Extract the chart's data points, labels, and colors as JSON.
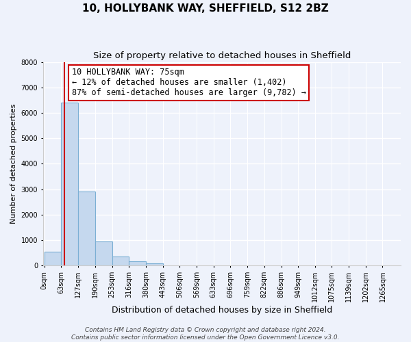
{
  "title": "10, HOLLYBANK WAY, SHEFFIELD, S12 2BZ",
  "subtitle": "Size of property relative to detached houses in Sheffield",
  "xlabel": "Distribution of detached houses by size in Sheffield",
  "ylabel": "Number of detached properties",
  "bar_labels": [
    "0sqm",
    "63sqm",
    "127sqm",
    "190sqm",
    "253sqm",
    "316sqm",
    "380sqm",
    "443sqm",
    "506sqm",
    "569sqm",
    "633sqm",
    "696sqm",
    "759sqm",
    "822sqm",
    "886sqm",
    "949sqm",
    "1012sqm",
    "1075sqm",
    "1139sqm",
    "1202sqm",
    "1265sqm"
  ],
  "bar_values": [
    550,
    6400,
    2920,
    960,
    370,
    160,
    80,
    0,
    0,
    0,
    0,
    0,
    0,
    0,
    0,
    0,
    0,
    0,
    0,
    0,
    0
  ],
  "bin_edges": [
    0,
    63,
    127,
    190,
    253,
    316,
    380,
    443,
    506,
    569,
    633,
    696,
    759,
    822,
    886,
    949,
    1012,
    1075,
    1139,
    1202,
    1265
  ],
  "bin_width": 63,
  "bar_color": "#c5d8ee",
  "bar_edge_color": "#7bafd4",
  "ylim": [
    0,
    8000
  ],
  "yticks": [
    0,
    1000,
    2000,
    3000,
    4000,
    5000,
    6000,
    7000,
    8000
  ],
  "property_size": 75,
  "property_line_color": "#cc0000",
  "annotation_line1": "10 HOLLYBANK WAY: 75sqm",
  "annotation_line2": "← 12% of detached houses are smaller (1,402)",
  "annotation_line3": "87% of semi-detached houses are larger (9,782) →",
  "annotation_box_color": "#ffffff",
  "annotation_box_edge_color": "#cc0000",
  "background_color": "#eef2fb",
  "grid_color": "#ffffff",
  "footer_line1": "Contains HM Land Registry data © Crown copyright and database right 2024.",
  "footer_line2": "Contains public sector information licensed under the Open Government Licence v3.0.",
  "title_fontsize": 11,
  "subtitle_fontsize": 9.5,
  "xlabel_fontsize": 9,
  "ylabel_fontsize": 8,
  "tick_fontsize": 7,
  "annotation_fontsize": 8.5,
  "footer_fontsize": 6.5
}
